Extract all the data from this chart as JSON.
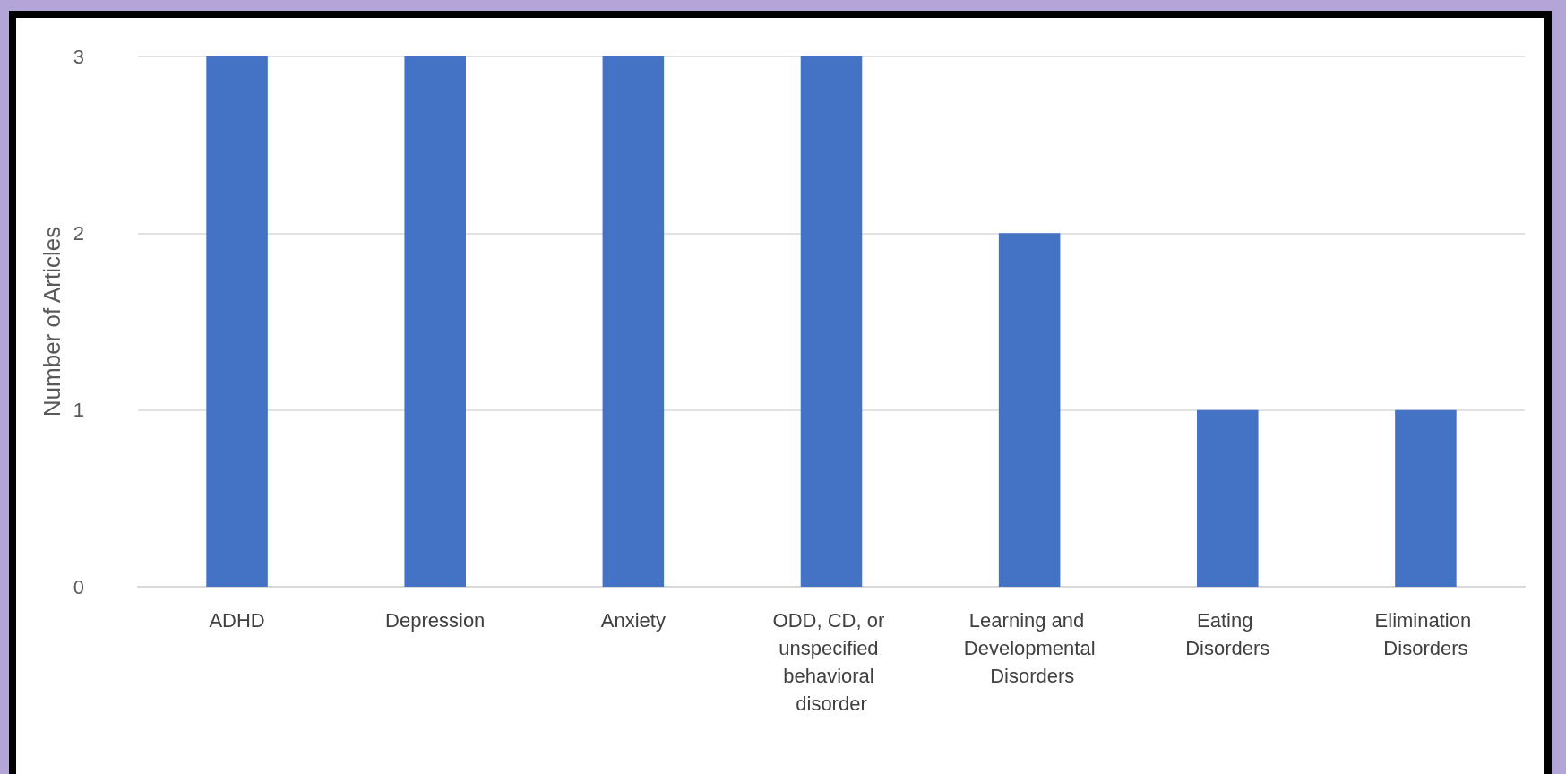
{
  "chart_data": {
    "type": "bar",
    "ylabel": "Number of Articles",
    "categories": [
      "ADHD",
      "Depression",
      "Anxiety",
      "ODD, CD, or unspecified behavioral disorder",
      "Learning and Developmental Disorders",
      "Eating Disorders",
      "Elimination Disorders"
    ],
    "values": [
      3,
      3,
      3,
      3,
      2,
      1,
      1
    ],
    "color": "#4472c4",
    "ylim": [
      0,
      3
    ],
    "yticks": [
      0,
      1,
      2,
      3
    ],
    "grid": "y"
  }
}
